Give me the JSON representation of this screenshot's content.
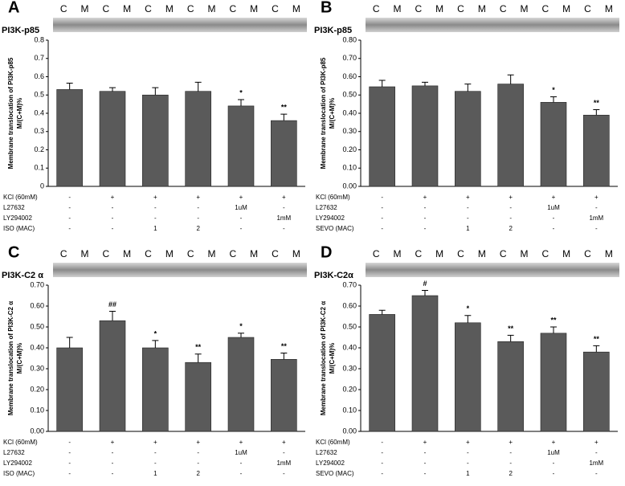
{
  "chart_data": [
    {
      "type": "bar",
      "panel": "A",
      "blot_label": "PI3K-p85",
      "lanes": [
        "C",
        "M",
        "C",
        "M",
        "C",
        "M",
        "C",
        "M",
        "C",
        "M",
        "C",
        "M"
      ],
      "ylabel": [
        "Membrane translocation of  PI3K-p85",
        "M/(C+M)%"
      ],
      "color": "#5a5a5a",
      "ylim": [
        0,
        0.8
      ],
      "yticks": [
        0,
        0.1,
        0.2,
        0.3,
        0.4,
        0.5,
        0.6,
        0.7,
        0.8
      ],
      "values": [
        0.53,
        0.52,
        0.5,
        0.52,
        0.44,
        0.36
      ],
      "errors": [
        0.035,
        0.02,
        0.04,
        0.05,
        0.035,
        0.035
      ],
      "annotations": [
        null,
        null,
        null,
        null,
        "*",
        "**"
      ],
      "treatments": [
        {
          "label": "KCl (60mM)",
          "cells": [
            "-",
            "+",
            "+",
            "+",
            "+",
            "+"
          ]
        },
        {
          "label": "L27632",
          "cells": [
            "-",
            "-",
            "-",
            "-",
            "1uM",
            "-"
          ]
        },
        {
          "label": "LY294002",
          "cells": [
            "-",
            "-",
            "-",
            "-",
            "-",
            "1mM"
          ]
        },
        {
          "label": "ISO (MAC)",
          "cells": [
            "-",
            "-",
            "1",
            "2",
            "-",
            "-"
          ]
        }
      ]
    },
    {
      "type": "bar",
      "panel": "B",
      "blot_label": "PI3K-p85",
      "lanes": [
        "C",
        "M",
        "C",
        "M",
        "C",
        "M",
        "C",
        "M",
        "C",
        "M",
        "C",
        "M"
      ],
      "ylabel": [
        "Membrane translocation of  PI3K-p85",
        "M/(C+M)%"
      ],
      "color": "#5a5a5a",
      "ylim": [
        0,
        0.8
      ],
      "yticks": [
        {
          "value": 0,
          "label": "0.00"
        },
        {
          "value": 0.1,
          "label": "0.10"
        },
        {
          "value": 0.2,
          "label": "0.20"
        },
        {
          "value": 0.3,
          "label": "0.30"
        },
        {
          "value": 0.4,
          "label": "0.40"
        },
        {
          "value": 0.5,
          "label": "0.50"
        },
        {
          "value": 0.6,
          "label": "0.60"
        },
        {
          "value": 0.7,
          "label": "0.70"
        },
        {
          "value": 0.8,
          "label": "0.80"
        }
      ],
      "values": [
        0.545,
        0.55,
        0.52,
        0.56,
        0.46,
        0.39
      ],
      "errors": [
        0.035,
        0.02,
        0.04,
        0.05,
        0.03,
        0.03
      ],
      "annotations": [
        null,
        null,
        null,
        null,
        "*",
        "**"
      ],
      "treatments": [
        {
          "label": "KCl (60mM)",
          "cells": [
            "-",
            "+",
            "+",
            "+",
            "+",
            "+"
          ]
        },
        {
          "label": "L27632",
          "cells": [
            "-",
            "-",
            "-",
            "-",
            "1uM",
            "-"
          ]
        },
        {
          "label": "LY294002",
          "cells": [
            "-",
            "-",
            "-",
            "-",
            "-",
            "1mM"
          ]
        },
        {
          "label": "SEVO (MAC)",
          "cells": [
            "-",
            "-",
            "1",
            "2",
            "-",
            "-"
          ]
        }
      ]
    },
    {
      "type": "bar",
      "panel": "C",
      "blot_label": "PI3K-C2 α",
      "lanes": [
        "C",
        "M",
        "C",
        "M",
        "C",
        "M",
        "C",
        "M",
        "C",
        "M",
        "C",
        "M"
      ],
      "ylabel": [
        "Membrane translocation of  PI3K-C2 α",
        "M/(C+M)%"
      ],
      "color": "#5a5a5a",
      "ylim": [
        0,
        0.7
      ],
      "yticks": [
        {
          "value": 0,
          "label": "0.00"
        },
        {
          "value": 0.1,
          "label": "0.10"
        },
        {
          "value": 0.2,
          "label": "0.20"
        },
        {
          "value": 0.3,
          "label": "0.30"
        },
        {
          "value": 0.4,
          "label": "0.40"
        },
        {
          "value": 0.5,
          "label": "0.50"
        },
        {
          "value": 0.6,
          "label": "0.60"
        },
        {
          "value": 0.7,
          "label": "0.70"
        }
      ],
      "values": [
        0.4,
        0.53,
        0.4,
        0.33,
        0.45,
        0.345
      ],
      "errors": [
        0.05,
        0.045,
        0.035,
        0.04,
        0.02,
        0.03
      ],
      "annotations": [
        null,
        "##",
        "*",
        "**",
        "*",
        "**"
      ],
      "treatments": [
        {
          "label": "KCl (60mM)",
          "cells": [
            "-",
            "+",
            "+",
            "+",
            "+",
            "+"
          ]
        },
        {
          "label": "L27632",
          "cells": [
            "-",
            "-",
            "-",
            "-",
            "1uM",
            "-"
          ]
        },
        {
          "label": "LY294002",
          "cells": [
            "-",
            "-",
            "-",
            "-",
            "-",
            "1mM"
          ]
        },
        {
          "label": "ISO (MAC)",
          "cells": [
            "-",
            "-",
            "1",
            "2",
            "-",
            "-"
          ]
        }
      ]
    },
    {
      "type": "bar",
      "panel": "D",
      "blot_label": "PI3K-C2α",
      "lanes": [
        "C",
        "M",
        "C",
        "M",
        "C",
        "M",
        "C",
        "M",
        "C",
        "M",
        "C",
        "M"
      ],
      "ylabel": [
        "Membrane translocation of  PI3K-C2 α",
        "M/(C+M)%"
      ],
      "color": "#5a5a5a",
      "ylim": [
        0,
        0.7
      ],
      "yticks": [
        {
          "value": 0,
          "label": "0.00"
        },
        {
          "value": 0.1,
          "label": "0.10"
        },
        {
          "value": 0.2,
          "label": "0.20"
        },
        {
          "value": 0.3,
          "label": "0.30"
        },
        {
          "value": 0.4,
          "label": "0.40"
        },
        {
          "value": 0.5,
          "label": "0.50"
        },
        {
          "value": 0.6,
          "label": "0.60"
        },
        {
          "value": 0.7,
          "label": "0.70"
        }
      ],
      "values": [
        0.56,
        0.65,
        0.52,
        0.43,
        0.47,
        0.38
      ],
      "errors": [
        0.02,
        0.025,
        0.035,
        0.03,
        0.03,
        0.03
      ],
      "annotations": [
        null,
        "#",
        "*",
        "**",
        "**",
        "**"
      ],
      "treatments": [
        {
          "label": "KCl (60mM)",
          "cells": [
            "-",
            "+",
            "+",
            "+",
            "+",
            "+"
          ]
        },
        {
          "label": "L27632",
          "cells": [
            "-",
            "-",
            "-",
            "-",
            "1uM",
            "-"
          ]
        },
        {
          "label": "LY294002",
          "cells": [
            "-",
            "-",
            "-",
            "-",
            "-",
            "1mM"
          ]
        },
        {
          "label": "SEVO (MAC)",
          "cells": [
            "-",
            "-",
            "1",
            "2",
            "-",
            "-"
          ]
        }
      ]
    }
  ]
}
